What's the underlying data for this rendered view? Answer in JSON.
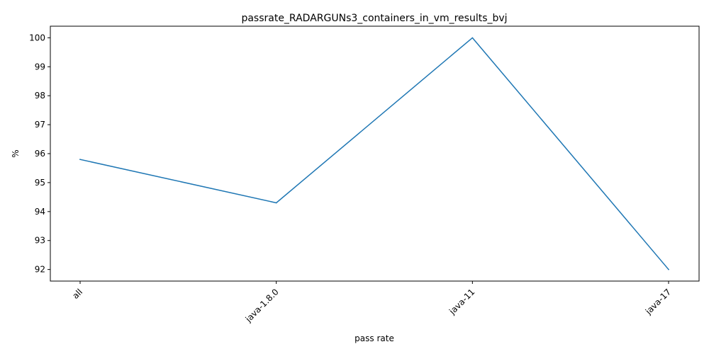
{
  "chart_data": {
    "type": "line",
    "title": "passrate_RADARGUNs3_containers_in_vm_results_bvj",
    "xlabel": "pass rate",
    "ylabel": "%",
    "categories": [
      "all",
      "java-1.8.0",
      "java-11",
      "java-17"
    ],
    "series": [
      {
        "values": [
          95.8,
          94.3,
          100.0,
          92.0
        ],
        "color": "#1f77b4"
      }
    ],
    "ylim": [
      91.6,
      100.4
    ],
    "yticks": [
      92,
      93,
      94,
      95,
      96,
      97,
      98,
      99,
      100
    ],
    "grid": false,
    "xtick_rotation": "45-degrees"
  }
}
